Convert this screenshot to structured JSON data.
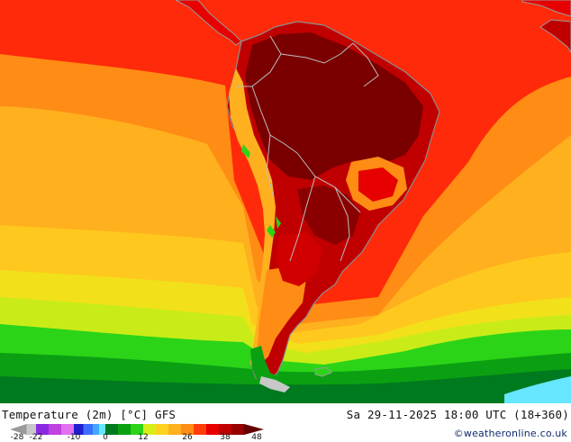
{
  "map": {
    "title": "Temperature (2m) [°C] GFS",
    "valid_time": "Sa 29-11-2025 18:00 UTC (18+360)",
    "credit": "©weatheronline.co.uk",
    "region": "South America",
    "legend": {
      "tick_labels": [
        "-28",
        "-22",
        "-10",
        "0",
        "12",
        "26",
        "38",
        "48"
      ],
      "tick_values": [
        -28,
        -22,
        -10,
        0,
        12,
        26,
        38,
        48
      ],
      "min": -28,
      "max": 48,
      "colors": [
        {
          "from": -28,
          "to": -25,
          "color": "#9a9a9a"
        },
        {
          "from": -25,
          "to": -22,
          "color": "#c8c8c8"
        },
        {
          "from": -22,
          "to": -18,
          "color": "#8a2be2"
        },
        {
          "from": -18,
          "to": -14,
          "color": "#c040e0"
        },
        {
          "from": -14,
          "to": -10,
          "color": "#e070f0"
        },
        {
          "from": -10,
          "to": -7,
          "color": "#1f1fd0"
        },
        {
          "from": -7,
          "to": -4,
          "color": "#3d6dff"
        },
        {
          "from": -4,
          "to": -2,
          "color": "#42a8ff"
        },
        {
          "from": -2,
          "to": 0,
          "color": "#66e6ff"
        },
        {
          "from": 0,
          "to": 4,
          "color": "#007a1e"
        },
        {
          "from": 4,
          "to": 8,
          "color": "#0aa012"
        },
        {
          "from": 8,
          "to": 12,
          "color": "#2cd418"
        },
        {
          "from": 12,
          "to": 16,
          "color": "#d6ee18"
        },
        {
          "from": 16,
          "to": 20,
          "color": "#ffd21e"
        },
        {
          "from": 20,
          "to": 24,
          "color": "#ffb01e"
        },
        {
          "from": 24,
          "to": 28,
          "color": "#ff8c14"
        },
        {
          "from": 28,
          "to": 32,
          "color": "#ff3c0a"
        },
        {
          "from": 32,
          "to": 36,
          "color": "#e60000"
        },
        {
          "from": 36,
          "to": 40,
          "color": "#c00000"
        },
        {
          "from": 40,
          "to": 44,
          "color": "#960000"
        },
        {
          "from": 44,
          "to": 48,
          "color": "#640000"
        }
      ]
    },
    "colors": {
      "ocean_north": "#ff2a0a",
      "ocean_mid": "#ff8c14",
      "ocean_subtropic": "#ffb01e",
      "ocean_south": "#2cd418",
      "land_hot": "#8a0000",
      "land_warm": "#c00000",
      "borders": "#bdbdbd",
      "coast": "#9a9a9a",
      "antarctic_edge": "#66e6ff"
    }
  }
}
